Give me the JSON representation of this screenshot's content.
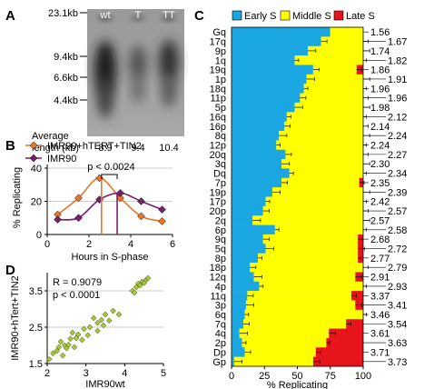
{
  "chart_data": [
    {
      "panel": "A",
      "type": "gel",
      "size_markers": [
        "23.1kb",
        "9.4kb",
        "6.6kb",
        "4.4kb"
      ],
      "lanes": [
        "wt",
        "T",
        "TT"
      ],
      "row_label_line1": "Average",
      "row_label_line2": "length (kb)",
      "average_length_kb": [
        8.9,
        9.4,
        10.4
      ]
    },
    {
      "panel": "B",
      "type": "line",
      "xlabel": "Hours in S-phase",
      "ylabel": "% Replicating",
      "xlim": [
        0,
        6
      ],
      "ylim": [
        0,
        40
      ],
      "xticks": [
        0,
        2,
        4,
        6
      ],
      "yticks": [
        0,
        20,
        40
      ],
      "pvalue_text": "p < 0.0024",
      "series": [
        {
          "name": "IMR90+hTERT+TIN2",
          "color": "#e8762a",
          "marker": "diamond",
          "x": [
            0.5,
            1.5,
            2.5,
            3.5,
            4.5,
            5.5
          ],
          "y": [
            12,
            22,
            34,
            22,
            11,
            8
          ]
        },
        {
          "name": "IMR90",
          "color": "#7a1f6e",
          "marker": "diamond",
          "x": [
            0.5,
            1.5,
            2.5,
            3.5,
            4.5,
            5.5
          ],
          "y": [
            9,
            10,
            21,
            25,
            20,
            15
          ]
        }
      ],
      "peak_markers_x": [
        2.6,
        3.35
      ]
    },
    {
      "panel": "C",
      "type": "bar",
      "orientation": "horizontal-stacked",
      "legend": [
        "Early S",
        "Middle S",
        "Late S"
      ],
      "colors": [
        "#1aa6e0",
        "#ffff00",
        "#e8141b"
      ],
      "xlabel": "% Replicating",
      "xticks": [
        0,
        25,
        50,
        75,
        100
      ],
      "categories": [
        "Gq",
        "17q",
        "9p",
        "1q",
        "19q",
        "1p",
        "18q",
        "11p",
        "5p",
        "16q",
        "16p",
        "8q",
        "12p",
        "20q",
        "3q",
        "Dq",
        "7p",
        "19p",
        "17p",
        "20p",
        "2q",
        "6p",
        "9q",
        "5q",
        "8p",
        "18p",
        "12q",
        "4p",
        "11q",
        "3p",
        "6q",
        "7q",
        "4q",
        "2p",
        "Dp",
        "Gp"
      ],
      "early": [
        75,
        68,
        58,
        48,
        62,
        57,
        55,
        52,
        48,
        42,
        40,
        36,
        34,
        41,
        38,
        44,
        38,
        31,
        26,
        24,
        16,
        33,
        24,
        26,
        20,
        14,
        17,
        21,
        12,
        11,
        10,
        9,
        6,
        8,
        10,
        2
      ],
      "late": [
        0,
        0,
        0,
        0,
        5,
        0,
        0,
        0,
        0,
        0,
        0,
        0,
        0,
        0,
        0,
        0,
        3,
        0,
        0,
        0,
        0,
        0,
        4,
        4,
        4,
        0,
        6,
        0,
        9,
        6,
        0,
        13,
        26,
        28,
        36,
        38
      ],
      "late_early_ratio_labels": [
        "1.56",
        "1.67",
        "1.74",
        "1.82",
        "1.86",
        "1.91",
        "1.96",
        "1.96",
        "1.98",
        "2.12",
        "2.14",
        "2.24",
        "2.24",
        "2.27",
        "2.30",
        "2.34",
        "2.35",
        "2.39",
        "2.42",
        "2.57",
        "2.57",
        "2.58",
        "2.68",
        "2.72",
        "2.77",
        "2.79",
        "2.91",
        "2.93",
        "3.37",
        "3.41",
        "3.46",
        "3.54",
        "3.61",
        "3.63",
        "3.71",
        "3.73"
      ]
    },
    {
      "panel": "D",
      "type": "scatter",
      "xlabel": "IMR90wt",
      "ylabel": "IMR90+hTert+TIN2",
      "xlim": [
        2,
        5
      ],
      "ylim": [
        1.5,
        4.0
      ],
      "xticks": [
        2,
        3,
        4,
        5
      ],
      "yticks": [
        1.5,
        2.5,
        3.5
      ],
      "stat_r": "R = 0.9079",
      "stat_p": "p < 0.0001",
      "points": [
        [
          2.05,
          1.62
        ],
        [
          2.15,
          1.78
        ],
        [
          2.25,
          1.85
        ],
        [
          2.3,
          1.95
        ],
        [
          2.35,
          2.1
        ],
        [
          2.45,
          2.0
        ],
        [
          2.5,
          1.92
        ],
        [
          2.55,
          2.02
        ],
        [
          2.6,
          2.18
        ],
        [
          2.65,
          2.35
        ],
        [
          2.7,
          1.95
        ],
        [
          2.75,
          2.2
        ],
        [
          2.8,
          2.3
        ],
        [
          2.9,
          2.15
        ],
        [
          2.95,
          2.45
        ],
        [
          3.05,
          2.28
        ],
        [
          3.1,
          2.5
        ],
        [
          3.2,
          2.75
        ],
        [
          3.3,
          2.62
        ],
        [
          3.4,
          2.7
        ],
        [
          3.5,
          2.85
        ],
        [
          3.6,
          2.68
        ],
        [
          3.7,
          2.95
        ],
        [
          3.85,
          2.85
        ],
        [
          4.2,
          3.5
        ],
        [
          4.3,
          3.6
        ],
        [
          4.35,
          3.7
        ],
        [
          4.4,
          3.65
        ],
        [
          4.45,
          3.75
        ],
        [
          4.5,
          3.72
        ],
        [
          4.55,
          3.8
        ],
        [
          4.6,
          3.85
        ],
        [
          3.3,
          2.4
        ],
        [
          3.45,
          2.55
        ],
        [
          2.4,
          1.72
        ],
        [
          4.25,
          3.45
        ]
      ]
    }
  ],
  "labels": {
    "A": "A",
    "B": "B",
    "C": "C",
    "D": "D"
  }
}
